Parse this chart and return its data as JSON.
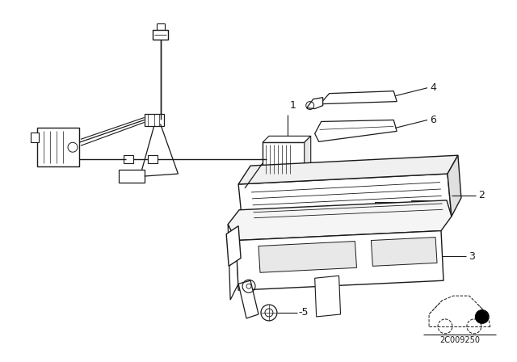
{
  "bg_color": "#ffffff",
  "line_color": "#1a1a1a",
  "figsize": [
    6.4,
    4.48
  ],
  "dpi": 100,
  "image_id": "2C009250"
}
